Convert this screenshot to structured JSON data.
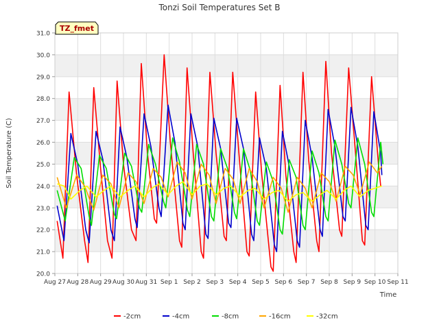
{
  "chart_data": {
    "type": "line",
    "title": "Tonzi Soil Temperatures Set B",
    "xlabel": "Time",
    "ylabel": "Soil Temperature (C)",
    "badge": "TZ_fmet",
    "xlim": [
      27,
      42
    ],
    "ylim": [
      20.0,
      31.0
    ],
    "x_tick_values": [
      27,
      28,
      29,
      30,
      31,
      32,
      33,
      34,
      35,
      36,
      37,
      38,
      39,
      40,
      41,
      42
    ],
    "x_tick_labels": [
      "Aug 27",
      "Aug 28",
      "Aug 29",
      "Aug 30",
      "Aug 31",
      "Sep 1",
      "Sep 2",
      "Sep 3",
      "Sep 4",
      "Sep 5",
      "Sep 6",
      "Sep 7",
      "Sep 8",
      "Sep 9",
      "Sep 10",
      "Sep 11"
    ],
    "y_tick_values": [
      20,
      21,
      22,
      23,
      24,
      25,
      26,
      27,
      28,
      29,
      30,
      31
    ],
    "y_tick_labels": [
      "20.0",
      "21.0",
      "22.0",
      "23.0",
      "24.0",
      "25.0",
      "26.0",
      "27.0",
      "28.0",
      "29.0",
      "30.0",
      "31.0"
    ],
    "grid": true,
    "legend_position": "bottom",
    "series": [
      {
        "name": "-2cm",
        "color": "#ff0000",
        "points": [
          [
            27.1,
            22.4
          ],
          [
            27.35,
            20.7
          ],
          [
            27.62,
            28.3
          ],
          [
            27.95,
            24.5
          ],
          [
            28.3,
            21.5
          ],
          [
            28.45,
            20.5
          ],
          [
            28.7,
            28.5
          ],
          [
            29.0,
            24.8
          ],
          [
            29.3,
            21.5
          ],
          [
            29.5,
            20.7
          ],
          [
            29.72,
            28.8
          ],
          [
            30.0,
            25.0
          ],
          [
            30.35,
            22.0
          ],
          [
            30.55,
            21.5
          ],
          [
            30.78,
            29.6
          ],
          [
            31.05,
            25.5
          ],
          [
            31.35,
            22.5
          ],
          [
            31.45,
            22.3
          ],
          [
            31.78,
            30.0
          ],
          [
            32.05,
            26.0
          ],
          [
            32.45,
            21.5
          ],
          [
            32.55,
            21.2
          ],
          [
            32.78,
            29.4
          ],
          [
            33.05,
            25.5
          ],
          [
            33.4,
            21.0
          ],
          [
            33.5,
            20.7
          ],
          [
            33.78,
            29.2
          ],
          [
            34.05,
            25.5
          ],
          [
            34.4,
            21.7
          ],
          [
            34.5,
            21.5
          ],
          [
            34.78,
            29.2
          ],
          [
            35.05,
            25.5
          ],
          [
            35.4,
            21.0
          ],
          [
            35.5,
            20.8
          ],
          [
            35.78,
            28.3
          ],
          [
            36.05,
            24.5
          ],
          [
            36.45,
            20.3
          ],
          [
            36.55,
            20.1
          ],
          [
            36.85,
            28.6
          ],
          [
            37.1,
            24.5
          ],
          [
            37.45,
            21.0
          ],
          [
            37.55,
            20.5
          ],
          [
            37.85,
            29.2
          ],
          [
            38.1,
            25.2
          ],
          [
            38.45,
            21.5
          ],
          [
            38.55,
            21.0
          ],
          [
            38.85,
            29.7
          ],
          [
            39.1,
            25.5
          ],
          [
            39.45,
            22.0
          ],
          [
            39.55,
            21.7
          ],
          [
            39.85,
            29.4
          ],
          [
            40.15,
            25.5
          ],
          [
            40.45,
            21.5
          ],
          [
            40.55,
            21.3
          ],
          [
            40.85,
            29.0
          ],
          [
            41.15,
            25.0
          ],
          [
            41.25,
            24.0
          ]
        ]
      },
      {
        "name": "-4cm",
        "color": "#0000cc",
        "points": [
          [
            27.1,
            23.1
          ],
          [
            27.4,
            21.5
          ],
          [
            27.7,
            26.4
          ],
          [
            28.0,
            25.0
          ],
          [
            28.35,
            22.0
          ],
          [
            28.5,
            21.4
          ],
          [
            28.8,
            26.5
          ],
          [
            29.1,
            25.2
          ],
          [
            29.45,
            22.0
          ],
          [
            29.6,
            21.5
          ],
          [
            29.85,
            26.7
          ],
          [
            30.15,
            25.3
          ],
          [
            30.5,
            22.5
          ],
          [
            30.6,
            22.1
          ],
          [
            30.9,
            27.3
          ],
          [
            31.2,
            25.8
          ],
          [
            31.55,
            23.0
          ],
          [
            31.65,
            22.6
          ],
          [
            31.95,
            27.7
          ],
          [
            32.25,
            26.0
          ],
          [
            32.6,
            22.3
          ],
          [
            32.7,
            22.0
          ],
          [
            32.95,
            27.3
          ],
          [
            33.25,
            25.8
          ],
          [
            33.6,
            21.8
          ],
          [
            33.7,
            21.6
          ],
          [
            33.95,
            27.1
          ],
          [
            34.25,
            25.7
          ],
          [
            34.6,
            22.3
          ],
          [
            34.7,
            22.1
          ],
          [
            34.95,
            27.1
          ],
          [
            35.25,
            25.7
          ],
          [
            35.6,
            21.8
          ],
          [
            35.7,
            21.5
          ],
          [
            35.95,
            26.2
          ],
          [
            36.25,
            24.8
          ],
          [
            36.6,
            21.3
          ],
          [
            36.7,
            21.0
          ],
          [
            36.95,
            26.5
          ],
          [
            37.25,
            24.9
          ],
          [
            37.6,
            21.5
          ],
          [
            37.7,
            21.2
          ],
          [
            37.95,
            27.0
          ],
          [
            38.25,
            25.3
          ],
          [
            38.6,
            22.0
          ],
          [
            38.7,
            21.7
          ],
          [
            38.95,
            27.5
          ],
          [
            39.25,
            25.8
          ],
          [
            39.6,
            22.6
          ],
          [
            39.7,
            22.4
          ],
          [
            39.95,
            27.6
          ],
          [
            40.25,
            25.8
          ],
          [
            40.6,
            22.2
          ],
          [
            40.7,
            22.0
          ],
          [
            40.95,
            27.4
          ],
          [
            41.25,
            25.5
          ],
          [
            41.3,
            24.5
          ]
        ]
      },
      {
        "name": "-8cm",
        "color": "#00dd00",
        "points": [
          [
            27.1,
            23.8
          ],
          [
            27.45,
            22.4
          ],
          [
            27.85,
            25.3
          ],
          [
            28.15,
            24.8
          ],
          [
            28.5,
            22.6
          ],
          [
            28.6,
            22.2
          ],
          [
            28.95,
            25.4
          ],
          [
            29.25,
            24.8
          ],
          [
            29.6,
            22.7
          ],
          [
            29.7,
            22.5
          ],
          [
            30.05,
            25.5
          ],
          [
            30.35,
            24.9
          ],
          [
            30.7,
            23.0
          ],
          [
            30.8,
            22.8
          ],
          [
            31.1,
            25.9
          ],
          [
            31.4,
            25.0
          ],
          [
            31.75,
            23.3
          ],
          [
            31.85,
            23.0
          ],
          [
            32.15,
            26.2
          ],
          [
            32.45,
            25.1
          ],
          [
            32.8,
            22.9
          ],
          [
            32.9,
            22.6
          ],
          [
            33.2,
            25.9
          ],
          [
            33.5,
            25.0
          ],
          [
            33.85,
            22.6
          ],
          [
            33.95,
            22.4
          ],
          [
            34.25,
            25.7
          ],
          [
            34.55,
            24.8
          ],
          [
            34.85,
            22.8
          ],
          [
            34.95,
            22.5
          ],
          [
            35.25,
            25.7
          ],
          [
            35.55,
            24.7
          ],
          [
            35.85,
            22.4
          ],
          [
            35.95,
            22.2
          ],
          [
            36.25,
            25.1
          ],
          [
            36.55,
            24.2
          ],
          [
            36.85,
            22.0
          ],
          [
            36.95,
            21.8
          ],
          [
            37.25,
            25.2
          ],
          [
            37.55,
            24.4
          ],
          [
            37.85,
            22.2
          ],
          [
            37.95,
            22.0
          ],
          [
            38.25,
            25.6
          ],
          [
            38.55,
            24.6
          ],
          [
            38.85,
            22.6
          ],
          [
            38.95,
            22.4
          ],
          [
            39.25,
            26.1
          ],
          [
            39.55,
            25.0
          ],
          [
            39.85,
            23.2
          ],
          [
            39.95,
            23.0
          ],
          [
            40.25,
            26.2
          ],
          [
            40.55,
            25.0
          ],
          [
            40.85,
            22.8
          ],
          [
            40.95,
            22.6
          ],
          [
            41.25,
            26.0
          ],
          [
            41.35,
            25.0
          ]
        ]
      },
      {
        "name": "-16cm",
        "color": "#ffa500",
        "points": [
          [
            27.1,
            24.4
          ],
          [
            27.5,
            23.0
          ],
          [
            27.95,
            24.5
          ],
          [
            28.3,
            24.0
          ],
          [
            28.7,
            22.9
          ],
          [
            29.1,
            24.5
          ],
          [
            29.45,
            24.1
          ],
          [
            29.8,
            23.0
          ],
          [
            30.2,
            24.6
          ],
          [
            30.55,
            24.2
          ],
          [
            30.9,
            23.2
          ],
          [
            31.3,
            24.8
          ],
          [
            31.65,
            24.4
          ],
          [
            31.95,
            23.5
          ],
          [
            32.35,
            25.1
          ],
          [
            32.7,
            24.6
          ],
          [
            33.0,
            23.4
          ],
          [
            33.4,
            25.0
          ],
          [
            33.75,
            24.5
          ],
          [
            34.05,
            23.2
          ],
          [
            34.45,
            24.8
          ],
          [
            34.8,
            24.3
          ],
          [
            35.1,
            23.2
          ],
          [
            35.5,
            24.8
          ],
          [
            35.85,
            24.2
          ],
          [
            36.15,
            23.0
          ],
          [
            36.55,
            24.4
          ],
          [
            36.9,
            23.9
          ],
          [
            37.2,
            22.8
          ],
          [
            37.6,
            24.4
          ],
          [
            37.95,
            23.9
          ],
          [
            38.25,
            23.0
          ],
          [
            38.65,
            24.6
          ],
          [
            39.0,
            24.2
          ],
          [
            39.3,
            23.3
          ],
          [
            39.7,
            24.9
          ],
          [
            40.05,
            24.5
          ],
          [
            40.35,
            23.6
          ],
          [
            40.75,
            25.1
          ],
          [
            41.1,
            24.6
          ],
          [
            41.3,
            24.9
          ]
        ]
      },
      {
        "name": "-32cm",
        "color": "#ffff00",
        "points": [
          [
            27.1,
            24.1
          ],
          [
            27.4,
            24.0
          ],
          [
            27.7,
            23.4
          ],
          [
            28.1,
            23.8
          ],
          [
            28.4,
            24.0
          ],
          [
            28.8,
            23.5
          ],
          [
            29.15,
            23.8
          ],
          [
            29.45,
            24.0
          ],
          [
            29.85,
            23.5
          ],
          [
            30.2,
            23.8
          ],
          [
            30.5,
            24.0
          ],
          [
            30.9,
            23.5
          ],
          [
            31.25,
            23.9
          ],
          [
            31.55,
            24.1
          ],
          [
            31.95,
            23.6
          ],
          [
            32.3,
            24.0
          ],
          [
            32.6,
            24.2
          ],
          [
            33.0,
            23.6
          ],
          [
            33.35,
            24.0
          ],
          [
            33.65,
            24.1
          ],
          [
            34.05,
            23.6
          ],
          [
            34.4,
            23.9
          ],
          [
            34.7,
            24.0
          ],
          [
            35.1,
            23.5
          ],
          [
            35.45,
            23.8
          ],
          [
            35.75,
            23.9
          ],
          [
            36.15,
            23.4
          ],
          [
            36.5,
            23.7
          ],
          [
            36.8,
            23.8
          ],
          [
            37.2,
            23.3
          ],
          [
            37.55,
            23.6
          ],
          [
            37.85,
            23.7
          ],
          [
            38.25,
            23.3
          ],
          [
            38.6,
            23.6
          ],
          [
            38.9,
            23.8
          ],
          [
            39.3,
            23.4
          ],
          [
            39.65,
            23.8
          ],
          [
            39.95,
            24.0
          ],
          [
            40.35,
            23.5
          ],
          [
            40.7,
            23.8
          ],
          [
            41.0,
            23.9
          ],
          [
            41.3,
            24.0
          ]
        ]
      }
    ]
  }
}
